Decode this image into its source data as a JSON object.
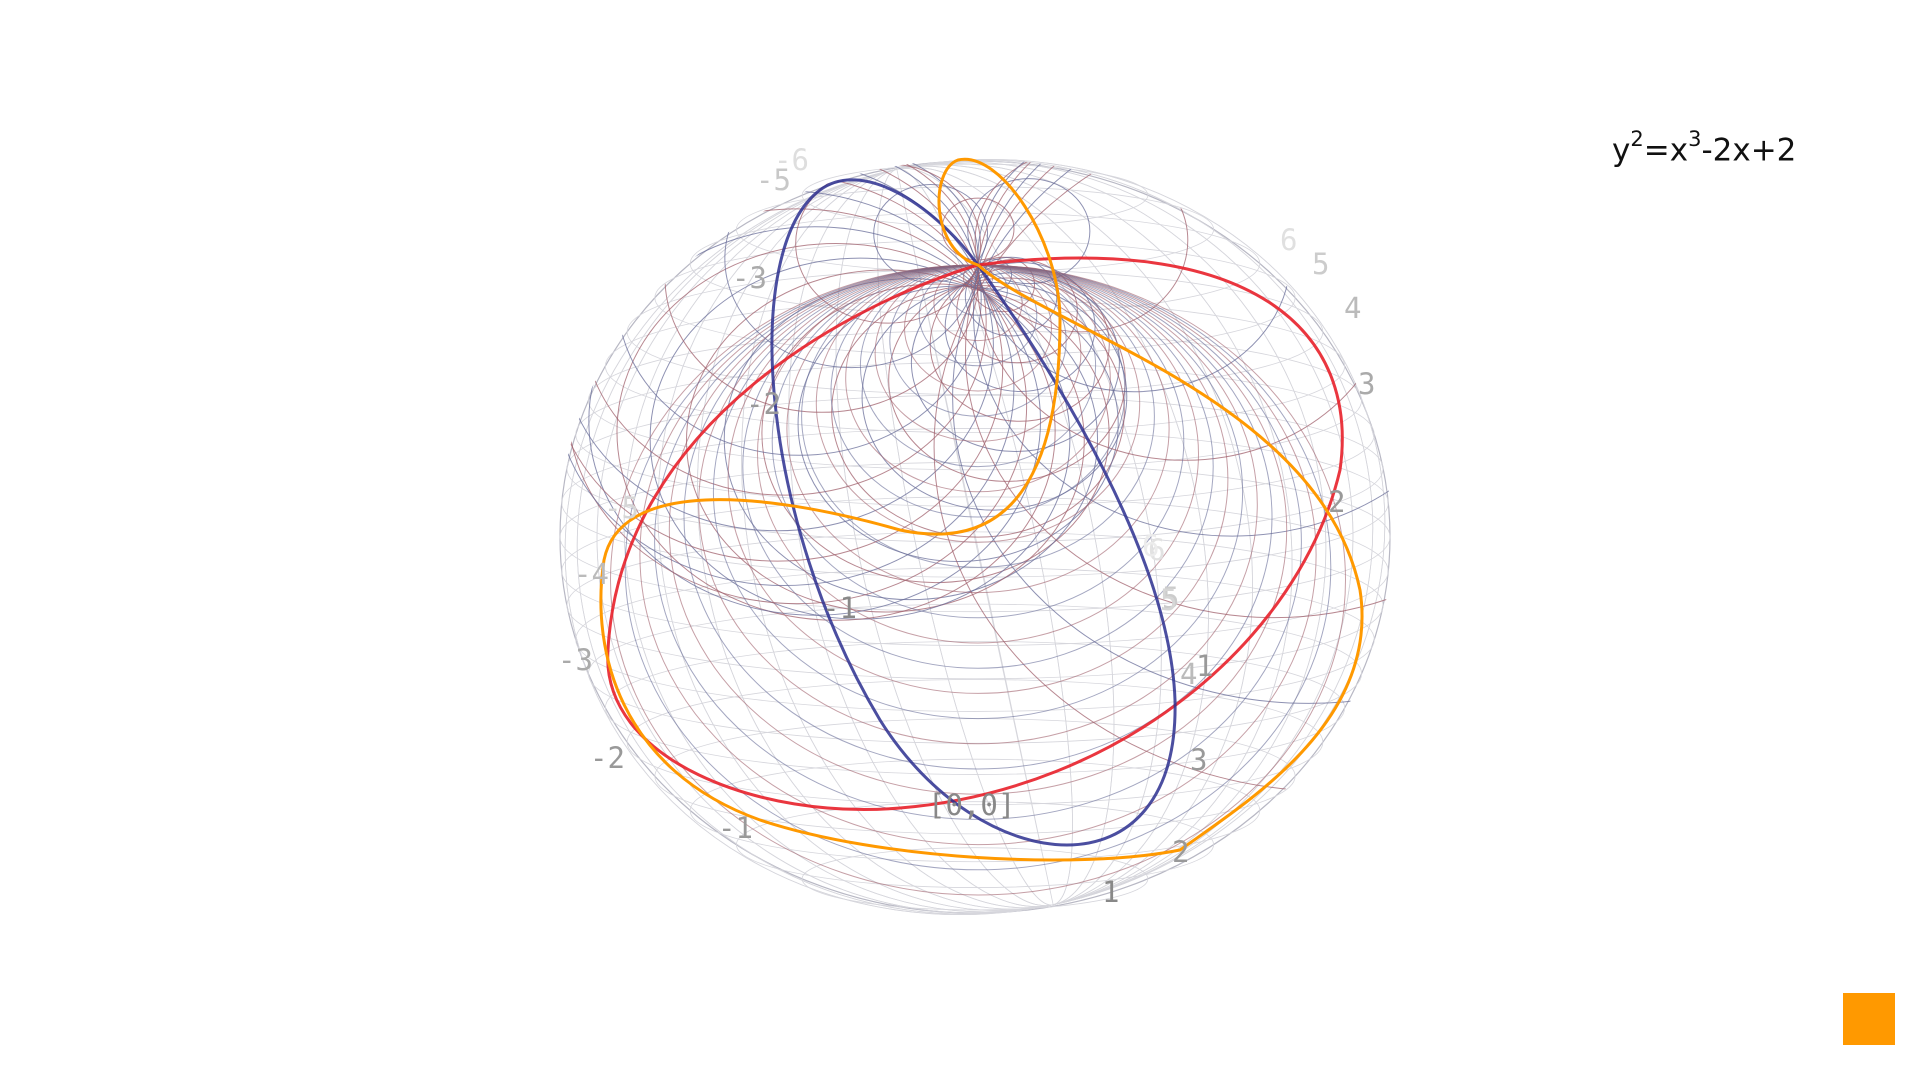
{
  "equation": {
    "lhs_base": "y",
    "lhs_exp": "2",
    "equals": "=",
    "rhs_base": "x",
    "rhs_exp": "3",
    "rhs_tail": "-2x+2"
  },
  "origin_label": "[0,0]",
  "axes": {
    "real_front": [
      "1",
      "2",
      "3",
      "4"
    ],
    "real_back": [
      "5",
      "6"
    ],
    "real_negative": [
      "-1",
      "-2",
      "-3",
      "-4",
      "-5"
    ],
    "imag_right": [
      "2",
      "3",
      "4",
      "5",
      "6"
    ],
    "imag_upper_left": [
      "-2",
      "-3",
      "-5",
      "-6"
    ],
    "center_marks": [
      "-1",
      "1",
      "4",
      "5",
      "6"
    ]
  },
  "colors": {
    "real_axis_curve": "#e8202a",
    "imag_axis_curve": "#2b2f8f",
    "elliptic_curve": "#ff9900",
    "mesh_red": "#a0606c",
    "mesh_blue": "#686c98",
    "grid_light": "#d6d6dc",
    "swatch": "#ff9900"
  },
  "swatch_icon": "color-swatch-square"
}
